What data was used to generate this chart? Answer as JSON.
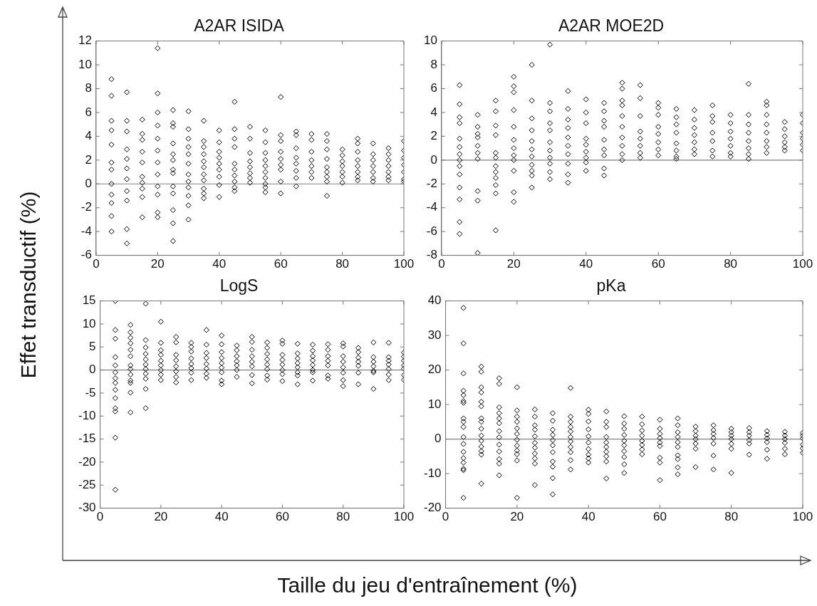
{
  "chart_data": [
    {
      "type": "scatter",
      "title": "A2AR ISIDA",
      "ylabel": "Effet transductif (%)",
      "color": "#000000",
      "marker": "diamond",
      "xlim": [
        0,
        100
      ],
      "xticks": [
        0,
        20,
        40,
        60,
        80,
        100
      ],
      "ylim": [
        -6,
        12
      ],
      "yticks": [
        -6,
        -4,
        -2,
        0,
        2,
        4,
        6,
        8,
        10,
        12
      ],
      "ref_lines": [
        {
          "axis": "y",
          "value": 0,
          "color": "#808080"
        }
      ],
      "x": [
        5,
        5,
        5,
        5,
        5,
        5,
        5,
        5,
        5,
        5,
        5,
        5,
        10,
        10,
        10,
        10,
        10,
        10,
        10,
        10,
        10,
        10,
        10,
        15,
        15,
        15,
        15,
        15,
        15,
        15,
        15,
        15,
        15,
        20,
        20,
        20,
        20,
        20,
        20,
        20,
        20,
        20,
        20,
        20,
        20,
        25,
        25,
        25,
        25,
        25,
        25,
        25,
        25,
        25,
        25,
        25,
        25,
        25,
        30,
        30,
        30,
        30,
        30,
        30,
        30,
        30,
        30,
        30,
        30,
        30,
        35,
        35,
        35,
        35,
        35,
        35,
        35,
        35,
        35,
        35,
        35,
        40,
        40,
        40,
        40,
        40,
        40,
        40,
        40,
        40,
        45,
        45,
        45,
        45,
        45,
        45,
        45,
        45,
        45,
        45,
        50,
        50,
        50,
        50,
        50,
        50,
        50,
        50,
        55,
        55,
        55,
        55,
        55,
        55,
        55,
        55,
        55,
        55,
        60,
        60,
        60,
        60,
        60,
        60,
        60,
        60,
        60,
        65,
        65,
        65,
        65,
        65,
        65,
        65,
        65,
        70,
        70,
        70,
        70,
        70,
        70,
        70,
        75,
        75,
        75,
        75,
        75,
        75,
        75,
        75,
        75,
        80,
        80,
        80,
        80,
        80,
        80,
        80,
        85,
        85,
        85,
        85,
        85,
        85,
        85,
        85,
        90,
        90,
        90,
        90,
        90,
        90,
        90,
        95,
        95,
        95,
        95,
        95,
        95,
        95,
        100,
        100,
        100,
        100,
        100,
        100,
        100
      ],
      "values": [
        8.8,
        7.4,
        5.3,
        4.5,
        3.3,
        1.8,
        1.2,
        0,
        -0.9,
        -1.6,
        -2.7,
        -4,
        7.7,
        5.3,
        4.4,
        2.9,
        2.1,
        1.3,
        0.4,
        -0.6,
        -1.4,
        -3.8,
        -5,
        5.4,
        4.2,
        3.7,
        2.7,
        1.8,
        0.6,
        0.1,
        -0.4,
        -1.1,
        -2.8,
        11.4,
        7.6,
        6,
        4.9,
        3.8,
        2.8,
        1.8,
        0.8,
        -0.2,
        -0.9,
        -2.4,
        -2.8,
        6.2,
        5.1,
        4.8,
        3.4,
        2.5,
        2,
        1.2,
        0.9,
        -0.2,
        -0.8,
        -2.2,
        -3.3,
        -4.8,
        6.1,
        4.6,
        3.8,
        3.1,
        2.5,
        1.7,
        0.8,
        0.2,
        -0.3,
        -1,
        -1.8,
        -3,
        5.3,
        3.6,
        3.1,
        2.5,
        1.9,
        1.4,
        0.8,
        0.3,
        -0.4,
        -0.8,
        -1.2,
        4.5,
        3.5,
        2.7,
        2.2,
        1.7,
        1.2,
        0.6,
        -0.1,
        -1.1,
        6.9,
        4.6,
        3.8,
        3.1,
        1.7,
        1.2,
        0.7,
        0.2,
        -0.3,
        -0.6,
        4.8,
        3.8,
        2.6,
        1.9,
        1.4,
        0.9,
        0.5,
        0.1,
        4.5,
        3.5,
        2.6,
        2,
        1.5,
        1,
        0.5,
        0,
        -0.3,
        -0.7,
        7.3,
        4.1,
        3.6,
        2.7,
        2.1,
        1.6,
        1.2,
        0.2,
        -0.8,
        4.4,
        4.1,
        3,
        2.2,
        1.7,
        1.1,
        0.5,
        -0.2,
        4.2,
        3.7,
        2.7,
        2,
        1.5,
        1,
        0.5,
        4.2,
        3.6,
        2.9,
        2.1,
        1.4,
        1,
        0.6,
        0.2,
        -1,
        2.9,
        2.4,
        1.9,
        1.5,
        1,
        0.6,
        0.1,
        3.8,
        3.4,
        2.7,
        2,
        1.5,
        1,
        0.6,
        0.3,
        3.4,
        2.5,
        2,
        1.5,
        1,
        0.5,
        0.2,
        3,
        2.5,
        2,
        1.5,
        1,
        0.6,
        0.3,
        3.6,
        2.8,
        2.2,
        1.6,
        1,
        0.4,
        0.2
      ]
    },
    {
      "type": "scatter",
      "title": "A2AR MOE2D",
      "color": "#000000",
      "marker": "diamond",
      "xlim": [
        0,
        100
      ],
      "xticks": [
        0,
        20,
        40,
        60,
        80,
        100
      ],
      "ylim": [
        -8,
        10
      ],
      "yticks": [
        -8,
        -6,
        -4,
        -2,
        0,
        2,
        4,
        6,
        8,
        10
      ],
      "ref_lines": [
        {
          "axis": "y",
          "value": 0,
          "color": "#808080"
        }
      ],
      "x": [
        5,
        5,
        5,
        5,
        5,
        5,
        5,
        5,
        5,
        5,
        5,
        5,
        5,
        5,
        10,
        10,
        10,
        10,
        10,
        10,
        10,
        10,
        10,
        10,
        15,
        15,
        15,
        15,
        15,
        15,
        15,
        15,
        15,
        15,
        15,
        15,
        20,
        20,
        20,
        20,
        20,
        20,
        20,
        20,
        20,
        20,
        20,
        20,
        25,
        25,
        25,
        25,
        25,
        25,
        25,
        25,
        25,
        25,
        25,
        30,
        30,
        30,
        30,
        30,
        30,
        30,
        30,
        30,
        30,
        30,
        35,
        35,
        35,
        35,
        35,
        35,
        35,
        35,
        35,
        35,
        40,
        40,
        40,
        40,
        40,
        40,
        40,
        40,
        40,
        45,
        45,
        45,
        45,
        45,
        45,
        45,
        45,
        45,
        50,
        50,
        50,
        50,
        50,
        50,
        50,
        50,
        50,
        50,
        55,
        55,
        55,
        55,
        55,
        55,
        55,
        55,
        60,
        60,
        60,
        60,
        60,
        60,
        60,
        60,
        65,
        65,
        65,
        65,
        65,
        65,
        65,
        65,
        70,
        70,
        70,
        70,
        70,
        70,
        70,
        75,
        75,
        75,
        75,
        75,
        75,
        75,
        80,
        80,
        80,
        80,
        80,
        80,
        80,
        85,
        85,
        85,
        85,
        85,
        85,
        85,
        85,
        90,
        90,
        90,
        90,
        90,
        90,
        90,
        90,
        95,
        95,
        95,
        95,
        95,
        95,
        100,
        100,
        100,
        100,
        100,
        100
      ],
      "values": [
        6.3,
        4.7,
        3.6,
        3.1,
        1.8,
        1.1,
        0.5,
        0,
        -0.5,
        -1.2,
        -2.3,
        -3.3,
        -5.2,
        -6.2,
        3.8,
        2.8,
        2.2,
        1.9,
        1.2,
        0.6,
        0.1,
        -2.6,
        -3.4,
        -7.8,
        5,
        4.1,
        2.9,
        2.1,
        0.6,
        0.2,
        -0.5,
        -1,
        -1.5,
        -2.1,
        -2.8,
        -5.9,
        7,
        6.2,
        5.7,
        4.2,
        2.8,
        1.7,
        1,
        0.4,
        0,
        -0.9,
        -2.7,
        -3.5,
        8,
        5,
        3.5,
        2.5,
        1.6,
        0.9,
        0.3,
        -0.4,
        -0.9,
        -1.3,
        -2.3,
        9.7,
        4.8,
        4.1,
        3.1,
        2.5,
        1.5,
        0.8,
        0.2,
        -0.3,
        -1,
        -1.6,
        5.8,
        4.3,
        3.4,
        2.7,
        1.9,
        1.2,
        0.5,
        -0.3,
        -1.2,
        -1.9,
        5.1,
        4,
        3.1,
        1.8,
        1.3,
        0.7,
        0.2,
        -0.2,
        -0.9,
        4.8,
        4.1,
        3.3,
        2.8,
        1.7,
        0.9,
        0.4,
        -0.7,
        -1.3,
        6.5,
        6,
        5,
        4.6,
        3.7,
        2.8,
        1.9,
        1.2,
        0.5,
        0,
        6.3,
        5.2,
        3.7,
        2.4,
        1.8,
        1.2,
        0.6,
        0.2,
        4.8,
        4.4,
        3.8,
        2.8,
        2.2,
        1.5,
        0.9,
        0.4,
        4.3,
        3.6,
        3,
        2.3,
        1.4,
        0.8,
        0.3,
        0.1,
        4.2,
        3.4,
        2.7,
        2.1,
        1.5,
        0.9,
        0.5,
        4.6,
        3.7,
        3.2,
        2.3,
        1.6,
        0.8,
        0.3,
        3.8,
        3.1,
        2.4,
        1.8,
        1.2,
        0.6,
        0.3,
        6.4,
        3.8,
        3,
        2.3,
        1.6,
        1,
        0.5,
        0.1,
        4.9,
        4.6,
        3.8,
        3,
        2.3,
        1.6,
        1.1,
        0.6,
        3.2,
        2.6,
        2,
        1.5,
        1.1,
        0.8,
        3.8,
        3.1,
        2.3,
        1.8,
        1.3,
        0.8
      ]
    },
    {
      "type": "scatter",
      "title": "LogS",
      "xlabel": "Taille du jeu d'entraînement (%)",
      "color": "#000000",
      "marker": "diamond",
      "xlim": [
        0,
        100
      ],
      "xticks": [
        0,
        20,
        40,
        60,
        80,
        100
      ],
      "ylim": [
        -30,
        15
      ],
      "yticks": [
        -30,
        -25,
        -20,
        -15,
        -10,
        -5,
        0,
        5,
        10,
        15
      ],
      "ref_lines": [
        {
          "axis": "y",
          "value": 0,
          "color": "#808080"
        }
      ],
      "x": [
        5,
        5,
        5,
        5,
        5,
        5,
        5,
        5,
        5,
        5,
        5,
        5,
        5,
        5,
        10,
        10,
        10,
        10,
        10,
        10,
        10,
        10,
        10,
        10,
        10,
        10,
        10,
        15,
        15,
        15,
        15,
        15,
        15,
        15,
        15,
        15,
        15,
        15,
        20,
        20,
        20,
        20,
        20,
        20,
        20,
        20,
        20,
        25,
        25,
        25,
        25,
        25,
        25,
        25,
        25,
        30,
        30,
        30,
        30,
        30,
        30,
        30,
        30,
        35,
        35,
        35,
        35,
        35,
        35,
        35,
        35,
        40,
        40,
        40,
        40,
        40,
        40,
        40,
        40,
        40,
        45,
        45,
        45,
        45,
        45,
        45,
        45,
        50,
        50,
        50,
        50,
        50,
        50,
        50,
        50,
        55,
        55,
        55,
        55,
        55,
        55,
        55,
        55,
        60,
        60,
        60,
        60,
        60,
        60,
        60,
        60,
        65,
        65,
        65,
        65,
        65,
        65,
        65,
        65,
        70,
        70,
        70,
        70,
        70,
        70,
        70,
        70,
        75,
        75,
        75,
        75,
        75,
        75,
        75,
        80,
        80,
        80,
        80,
        80,
        80,
        80,
        80,
        85,
        85,
        85,
        85,
        85,
        85,
        85,
        90,
        90,
        90,
        90,
        90,
        90,
        90,
        95,
        95,
        95,
        95,
        95,
        95,
        95,
        100,
        100,
        100,
        100,
        100,
        100,
        100
      ],
      "values": [
        15,
        8.7,
        6.8,
        2.8,
        1,
        -0.5,
        -1.8,
        -2.8,
        -4.3,
        -6.1,
        -8.3,
        -9,
        -14.7,
        -26,
        9.8,
        8.2,
        7,
        5.8,
        4.4,
        3,
        1,
        0.2,
        -1,
        -2.3,
        -2.8,
        -4.9,
        -9.2,
        14.4,
        6.5,
        4.9,
        3.5,
        2.3,
        1.2,
        0.2,
        -0.8,
        -1.9,
        -4.1,
        -8.3,
        10.5,
        5.9,
        4.3,
        3.3,
        2,
        1,
        0,
        -1,
        -2.2,
        7.2,
        6,
        3.3,
        2.1,
        0.8,
        -0.3,
        -1.5,
        -2.7,
        5.9,
        5,
        4,
        2.5,
        1.3,
        0.4,
        -0.6,
        -2.2,
        8.7,
        5.5,
        3.7,
        2.6,
        1.3,
        0.3,
        -0.8,
        -1.7,
        7.5,
        5.6,
        3.9,
        2.6,
        1.5,
        0.5,
        -0.5,
        -2.3,
        -3.1,
        5.3,
        4.3,
        3,
        1.9,
        1,
        0,
        -1.5,
        7.2,
        6.1,
        4.4,
        3,
        1.8,
        0.8,
        -1.1,
        -2.9,
        6,
        4.8,
        3.5,
        2.3,
        1.2,
        0.2,
        -1.2,
        -2.1,
        6.4,
        5.7,
        3.3,
        2.2,
        1.2,
        0,
        -0.9,
        -2.4,
        5.7,
        3.6,
        2.5,
        1.5,
        0.6,
        -0.5,
        -1.2,
        -3.1,
        5.5,
        4.2,
        3,
        2.1,
        1.1,
        0,
        -0.5,
        -2.3,
        5.6,
        4.4,
        3,
        2,
        1,
        -1.2,
        -1.9,
        5.8,
        5.1,
        3,
        1.8,
        0.6,
        -0.6,
        -2.2,
        -3.5,
        4.8,
        3.9,
        2.7,
        1.8,
        0.9,
        -0.6,
        -3.1,
        6,
        2.8,
        1.8,
        0.8,
        -0.2,
        -0.5,
        -4.1,
        5.9,
        2.8,
        2,
        1.2,
        0.2,
        -1,
        -2.2,
        3.8,
        2.9,
        2,
        1,
        0.3,
        -1.1,
        -2.1
      ]
    },
    {
      "type": "scatter",
      "title": "pKa",
      "color": "#000000",
      "marker": "diamond",
      "xlim": [
        0,
        100
      ],
      "xticks": [
        0,
        20,
        40,
        60,
        80,
        100
      ],
      "ylim": [
        -20,
        40
      ],
      "yticks": [
        -20,
        -10,
        0,
        10,
        20,
        30,
        40
      ],
      "ref_lines": [
        {
          "axis": "y",
          "value": 0,
          "color": "#808080"
        }
      ],
      "x": [
        5,
        5,
        5,
        5,
        5,
        5,
        5,
        5,
        5,
        5,
        5,
        5,
        5,
        5,
        5,
        5,
        5,
        5,
        10,
        10,
        10,
        10,
        10,
        10,
        10,
        10,
        10,
        10,
        10,
        10,
        10,
        10,
        10,
        15,
        15,
        15,
        15,
        15,
        15,
        15,
        15,
        15,
        15,
        15,
        15,
        15,
        20,
        20,
        20,
        20,
        20,
        20,
        20,
        20,
        20,
        20,
        20,
        20,
        25,
        25,
        25,
        25,
        25,
        25,
        25,
        25,
        25,
        25,
        25,
        30,
        30,
        30,
        30,
        30,
        30,
        30,
        30,
        30,
        30,
        30,
        35,
        35,
        35,
        35,
        35,
        35,
        35,
        35,
        35,
        35,
        35,
        40,
        40,
        40,
        40,
        40,
        40,
        40,
        40,
        40,
        40,
        45,
        45,
        45,
        45,
        45,
        45,
        45,
        45,
        45,
        45,
        50,
        50,
        50,
        50,
        50,
        50,
        50,
        50,
        50,
        50,
        55,
        55,
        55,
        55,
        55,
        55,
        55,
        55,
        60,
        60,
        60,
        60,
        60,
        60,
        60,
        60,
        60,
        65,
        65,
        65,
        65,
        65,
        65,
        65,
        65,
        65,
        65,
        70,
        70,
        70,
        70,
        70,
        70,
        70,
        75,
        75,
        75,
        75,
        75,
        75,
        75,
        80,
        80,
        80,
        80,
        80,
        80,
        80,
        85,
        85,
        85,
        85,
        85,
        85,
        90,
        90,
        90,
        90,
        90,
        90,
        95,
        95,
        95,
        95,
        95,
        95,
        100,
        100,
        100,
        100,
        100,
        100
      ],
      "values": [
        38,
        27.7,
        19,
        14,
        12.7,
        11,
        10.5,
        6,
        5,
        3.5,
        0.6,
        -1.4,
        -3.7,
        -5.5,
        -6.8,
        -8.6,
        -9,
        -17,
        21,
        19.5,
        15,
        13.5,
        10.8,
        9.5,
        6,
        5,
        3,
        1,
        -0.5,
        -2.2,
        -3.5,
        -4.5,
        -12.9,
        17.6,
        16,
        9.2,
        7.5,
        6,
        4.6,
        2.3,
        0.5,
        -1.6,
        -3.6,
        -5.8,
        -7.1,
        -10.5,
        15,
        8.3,
        6.5,
        5,
        3.1,
        1.5,
        -0.2,
        -1.9,
        -3.3,
        -4.4,
        -6.2,
        -17,
        8.6,
        6.5,
        4,
        2.7,
        0.8,
        -1.1,
        -2.5,
        -4.2,
        -5.6,
        -7.1,
        -13.3,
        7.5,
        5.3,
        2.7,
        1.2,
        -0.3,
        -1.8,
        -3.8,
        -6.5,
        -8,
        -11.3,
        -16,
        14.8,
        6.5,
        5,
        3.5,
        2.2,
        0.6,
        -0.7,
        -2.3,
        -3.8,
        -6.1,
        -8.8,
        8.5,
        7.3,
        5.1,
        2.8,
        0.8,
        -1,
        -2.9,
        -4.5,
        -5.6,
        -6.8,
        8,
        5,
        3.5,
        0.6,
        -1,
        -2.3,
        -3.7,
        -5,
        -6.5,
        -11.4,
        6.6,
        4.5,
        3,
        1.2,
        -0.5,
        -1.8,
        -3.5,
        -5.2,
        -7.3,
        -9.8,
        6.5,
        4.3,
        2.5,
        1,
        -0.5,
        -1.7,
        -3,
        -4.4,
        5.6,
        3,
        1.5,
        0.3,
        -1,
        -2,
        -5.4,
        -6.8,
        -11.9,
        6,
        4,
        2,
        0.6,
        -0.9,
        -2.3,
        -4.7,
        -5.8,
        -8.2,
        -10.2,
        3.6,
        2.3,
        1,
        0,
        -1.3,
        -2.8,
        -8.1,
        4,
        2.6,
        1.5,
        0.3,
        -1.3,
        -4.8,
        -8.8,
        3,
        2,
        1,
        0,
        -1.4,
        -2.8,
        -9.8,
        3.2,
        2,
        1,
        -0.3,
        -1.3,
        -4.5,
        2.3,
        1.2,
        0.2,
        -0.9,
        -3.1,
        -5.7,
        2.1,
        1,
        0,
        -1.1,
        -2.8,
        -4.4,
        1.8,
        1,
        0.2,
        -1.6,
        -2.7,
        -4
      ]
    }
  ]
}
